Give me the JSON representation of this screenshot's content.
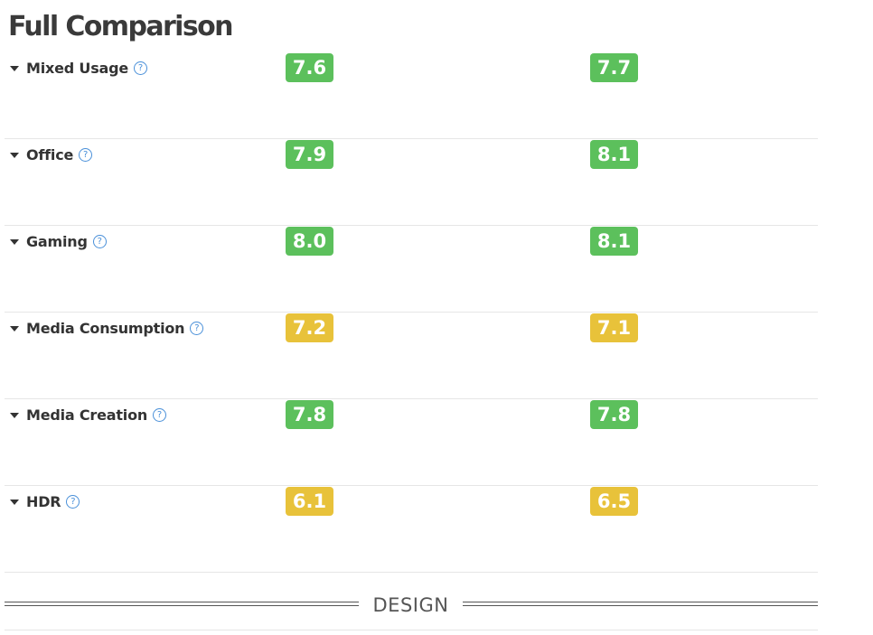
{
  "page": {
    "title": "Full Comparison"
  },
  "colors": {
    "good": "#5cc05c",
    "average": "#e8c23a"
  },
  "rows": [
    {
      "label": "Mixed Usage",
      "help_icon": "question-circle-icon",
      "score_a": "7.6",
      "score_a_level": "good",
      "score_b": "7.7",
      "score_b_level": "good"
    },
    {
      "label": "Office",
      "help_icon": "question-circle-icon",
      "score_a": "7.9",
      "score_a_level": "good",
      "score_b": "8.1",
      "score_b_level": "good"
    },
    {
      "label": "Gaming",
      "help_icon": "question-circle-icon",
      "score_a": "8.0",
      "score_a_level": "good",
      "score_b": "8.1",
      "score_b_level": "good"
    },
    {
      "label": "Media Consumption",
      "help_icon": "question-circle-icon",
      "score_a": "7.2",
      "score_a_level": "average",
      "score_b": "7.1",
      "score_b_level": "average"
    },
    {
      "label": "Media Creation",
      "help_icon": "question-circle-icon",
      "score_a": "7.8",
      "score_a_level": "good",
      "score_b": "7.8",
      "score_b_level": "good"
    },
    {
      "label": "HDR",
      "help_icon": "question-circle-icon",
      "score_a": "6.1",
      "score_a_level": "average",
      "score_b": "6.5",
      "score_b_level": "average"
    }
  ],
  "section": {
    "label": "DESIGN"
  }
}
